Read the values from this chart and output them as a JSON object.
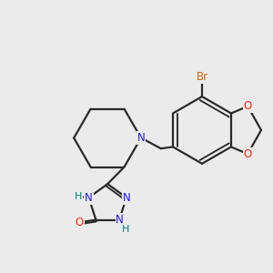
{
  "background_color": "#ebebeb",
  "bond_color": "#2a2a2a",
  "bond_width": 1.6,
  "figsize": [
    3.0,
    3.0
  ],
  "dpi": 100,
  "atom_colors": {
    "N": "#1a1aff",
    "O": "#ff2200",
    "Br": "#cc6600",
    "H": "#008080",
    "C": "#2a2a2a"
  },
  "font_size": 8.5
}
